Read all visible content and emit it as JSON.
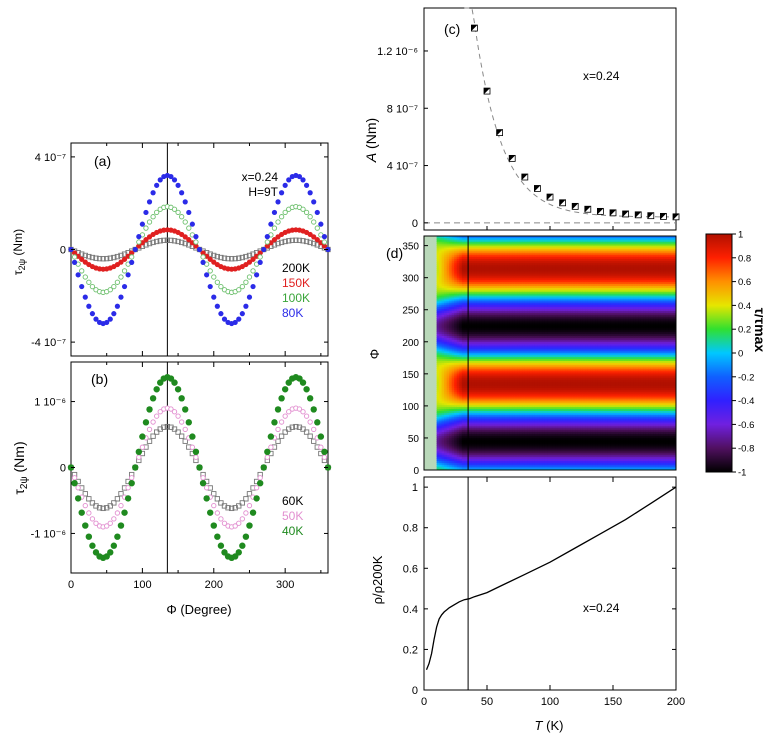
{
  "chart_data": [
    {
      "id": "a",
      "type": "scatter",
      "panel_label": "(a)",
      "annotation_lines": [
        "x=0.24",
        "H=9T"
      ],
      "xlabel": "",
      "ylabel": "τ₂ψ (Nm)",
      "ylabel_main": "τ",
      "ylabel_sub": "2ψ",
      "ylabel_unit": "(Nm)",
      "xlim": [
        0,
        360
      ],
      "ylim": [
        -4.6e-07,
        4.6e-07
      ],
      "yticks": [
        {
          "value": 4e-07,
          "label": "4 10⁻⁷"
        },
        {
          "value": 0,
          "label": "0"
        },
        {
          "value": -4e-07,
          "label": "-4 10⁻⁷"
        }
      ],
      "vline": 135,
      "model": "A·sin(2(Φ−90°))",
      "series": [
        {
          "name": "200K",
          "amplitude": 4e-08,
          "color": "#777777",
          "marker": "open-square"
        },
        {
          "name": "150K",
          "amplitude": 8.5e-08,
          "color": "#e02020",
          "marker": "dot"
        },
        {
          "name": "100K",
          "amplitude": 1.85e-07,
          "color": "#6ec06e",
          "marker": "open-circle"
        },
        {
          "name": "80K",
          "amplitude": 3.2e-07,
          "color": "#2b2be8",
          "marker": "dot"
        }
      ]
    },
    {
      "id": "b",
      "type": "scatter",
      "panel_label": "(b)",
      "xlabel": "Φ (Degree)",
      "ylabel": "τ₂ψ (Nm)",
      "ylabel_main": "τ",
      "ylabel_sub": "2ψ",
      "ylabel_unit": "(Nm)",
      "xlim": [
        0,
        360
      ],
      "ylim": [
        -1.6e-06,
        1.6e-06
      ],
      "xticks": [
        0,
        100,
        200,
        300
      ],
      "yticks": [
        {
          "value": 1e-06,
          "label": "1 10⁻⁶"
        },
        {
          "value": 0,
          "label": "0"
        },
        {
          "value": -1e-06,
          "label": "-1 10⁻⁶"
        }
      ],
      "vline": 135,
      "model": "A·sin(2(Φ−90°))",
      "series": [
        {
          "name": "60K",
          "amplitude": 6.2e-07,
          "color": "#777777",
          "marker": "open-square"
        },
        {
          "name": "50K",
          "amplitude": 9e-07,
          "color": "#e28fd0",
          "marker": "open-circle"
        },
        {
          "name": "40K",
          "amplitude": 1.37e-06,
          "color": "#1f8a1f",
          "marker": "dot"
        }
      ]
    },
    {
      "id": "c",
      "type": "scatter",
      "panel_label": "(c)",
      "annotation": "x=0.24",
      "ylabel": "A (Nm)",
      "ylabel_italic": "A",
      "ylabel_unit": "(Nm)",
      "xlim": [
        0,
        200
      ],
      "ylim": [
        -5e-08,
        1.5e-06
      ],
      "yticks": [
        {
          "value": 0,
          "label": "0"
        },
        {
          "value": 4e-07,
          "label": "4 10⁻⁷"
        },
        {
          "value": 8e-07,
          "label": "8 10⁻⁷"
        },
        {
          "value": 1.2e-06,
          "label": "1.2 10⁻⁶"
        }
      ],
      "x": [
        40,
        50,
        60,
        70,
        80,
        90,
        100,
        110,
        120,
        130,
        140,
        150,
        160,
        170,
        180,
        190,
        200
      ],
      "y": [
        1.36e-06,
        9.2e-07,
        6.3e-07,
        4.5e-07,
        3.2e-07,
        2.4e-07,
        1.8e-07,
        1.4e-07,
        1.15e-07,
        9.5e-08,
        8e-08,
        7e-08,
        6.2e-08,
        5.6e-08,
        5e-08,
        4.5e-08,
        4.2e-08
      ],
      "fit": "dashed exponential decay",
      "zero_line": "dashed"
    },
    {
      "id": "d",
      "type": "heatmap",
      "panel_label": "(d)",
      "ylabel": "Φ",
      "xlim": [
        0,
        200
      ],
      "ylim": [
        0,
        365
      ],
      "yticks": [
        0,
        50,
        100,
        150,
        200,
        250,
        300,
        350
      ],
      "value": "τ/τmax",
      "colorbar_label": "τ/τmax",
      "colorbar_ticks": [
        1,
        0.8,
        0.6,
        0.4,
        0.2,
        0,
        -0.2,
        -0.4,
        -0.6,
        -0.8,
        -1
      ],
      "colorbar_tick_labels": [
        "1",
        "0.8",
        "0.6",
        "0.4",
        "0.2",
        "0",
        "-0.2",
        "-0.4",
        "-0.6",
        "-0.8",
        "-1"
      ],
      "colorbar_range": [
        -1,
        1
      ],
      "data_start_T": 10,
      "max_phi": [
        135,
        315
      ],
      "min_phi": [
        45,
        225
      ],
      "vline": 35
    },
    {
      "id": "e",
      "type": "line",
      "annotation": "x=0.24",
      "xlabel": "T (K)",
      "xlabel_italic": "T",
      "xlabel_unit": "(K)",
      "ylabel": "ρ/ρ200K",
      "xlim": [
        0,
        200
      ],
      "ylim": [
        0,
        1.05
      ],
      "xticks": [
        0,
        50,
        100,
        150,
        200
      ],
      "yticks": [
        0,
        0.2,
        0.4,
        0.6,
        0.8,
        1
      ],
      "ytick_labels": [
        "0",
        "0.2",
        "0.4",
        "0.6",
        "0.8",
        "1"
      ],
      "x": [
        2,
        4,
        6,
        8,
        10,
        12,
        14,
        16,
        18,
        20,
        24,
        28,
        32,
        36,
        40,
        50,
        60,
        80,
        100,
        120,
        140,
        160,
        180,
        200
      ],
      "y": [
        0.1,
        0.13,
        0.18,
        0.25,
        0.31,
        0.35,
        0.37,
        0.385,
        0.395,
        0.405,
        0.42,
        0.435,
        0.445,
        0.45,
        0.46,
        0.48,
        0.51,
        0.57,
        0.63,
        0.7,
        0.77,
        0.84,
        0.92,
        1.0
      ],
      "vline": 35
    }
  ]
}
